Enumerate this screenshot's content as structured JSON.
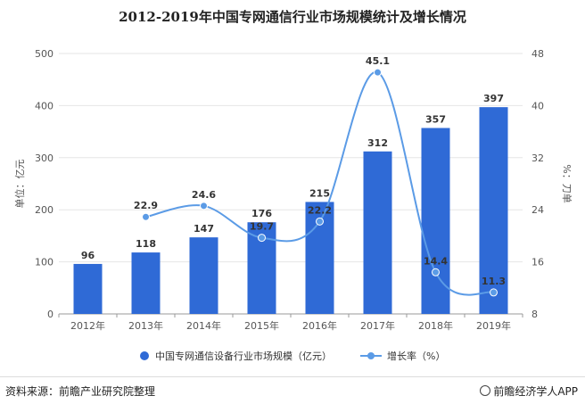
{
  "title": "2012-2019年中国专网通信行业市场规模统计及增长情况",
  "footer": {
    "source": "资料来源：前瞻产业研究院整理",
    "brand": "前瞻经济学人APP"
  },
  "colors": {
    "bar": "#2f6ad6",
    "line": "#5b9be6"
  },
  "chart_data": {
    "type": "bar",
    "categories": [
      "2012年",
      "2013年",
      "2014年",
      "2015年",
      "2016年",
      "2017年",
      "2018年",
      "2019年"
    ],
    "series": [
      {
        "name": "中国专网通信设备行业市场规模（亿元）",
        "type": "bar",
        "axis": "left",
        "values": [
          96,
          118,
          147,
          176,
          215,
          312,
          357,
          397
        ]
      },
      {
        "name": "增长率（%）",
        "type": "line",
        "axis": "right",
        "values": [
          null,
          22.9,
          24.6,
          19.7,
          22.2,
          45.1,
          14.4,
          11.3
        ]
      }
    ],
    "ylabel": "单位：亿元",
    "y2label": "%：刀单",
    "ylim": [
      0,
      500
    ],
    "yticks": [
      0,
      100,
      200,
      300,
      400,
      500
    ],
    "y2lim": [
      8,
      48
    ],
    "y2ticks": [
      8,
      16,
      24,
      32,
      40,
      48
    ],
    "legend_position": "bottom"
  }
}
